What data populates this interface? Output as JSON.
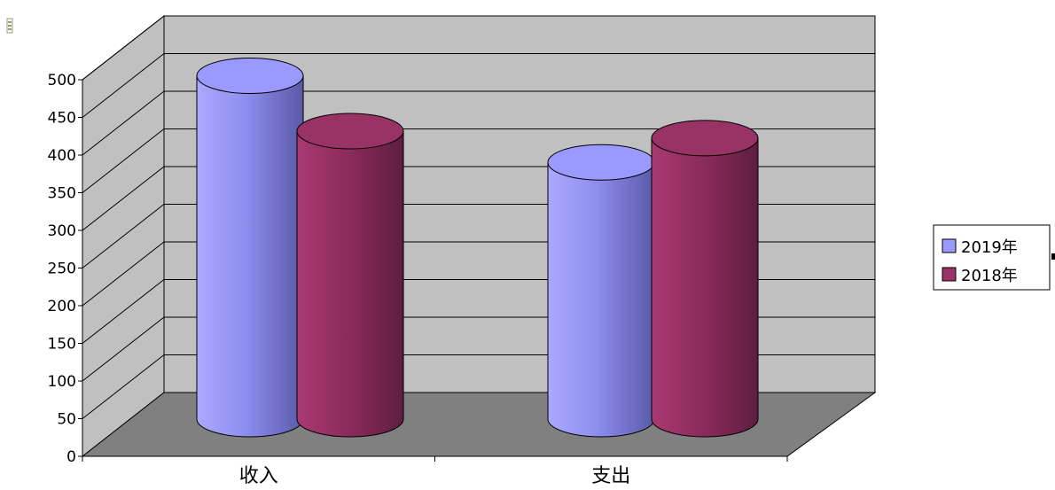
{
  "chart_data": {
    "type": "bar",
    "style": "3d-cylinder",
    "categories": [
      "收入",
      "支出"
    ],
    "series": [
      {
        "name": "2019年",
        "values": [
          470,
          345
        ],
        "color": "#9999FF"
      },
      {
        "name": "2018年",
        "values": [
          390,
          380
        ],
        "color": "#993366"
      }
    ],
    "ylim": [
      0,
      500
    ],
    "yticks": [
      "0",
      "50",
      "100",
      "150",
      "200",
      "250",
      "300",
      "350",
      "400",
      "450",
      "500"
    ],
    "grid": true,
    "legend_position": "right",
    "colors": {
      "back_wall": "#C0C0C0",
      "side_wall": "#C0C0C0",
      "floor": "#808080",
      "gridline": "#000000"
    }
  }
}
